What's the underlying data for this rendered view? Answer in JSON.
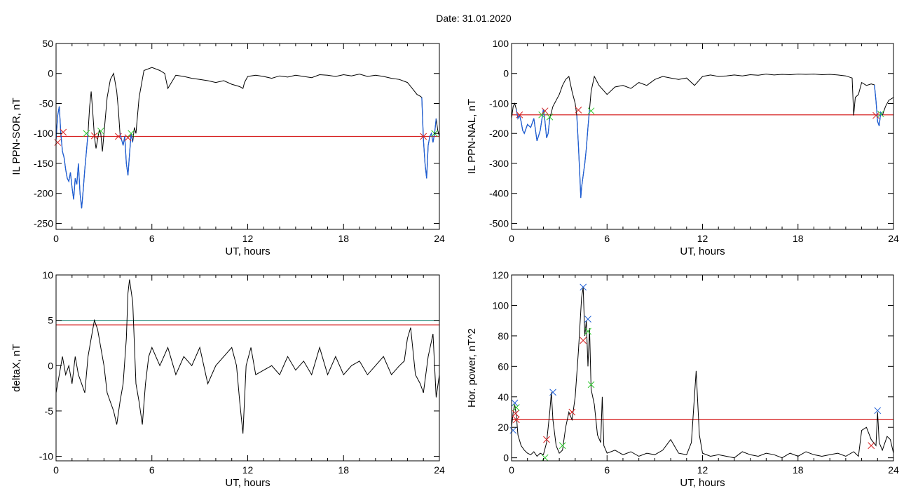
{
  "figure": {
    "title": "Date:  31.01.2020"
  },
  "colors": {
    "trace": "#000000",
    "highlight": "#1f5fd6",
    "threshold_red": "#d62020",
    "threshold_teal": "#2a8c7c",
    "marker_red": "#d62020",
    "marker_green": "#2fc82f",
    "marker_blue": "#1f5fd6"
  },
  "chart_data": [
    {
      "type": "line",
      "id": "ppn-sor",
      "ylabel": "IL PPN-SOR, nT",
      "xlabel": "UT, hours",
      "xlim": [
        0,
        24
      ],
      "ylim": [
        -260,
        50
      ],
      "xticks": [
        0,
        6,
        12,
        18,
        24
      ],
      "yticks": [
        50,
        0,
        -50,
        -100,
        -150,
        -200,
        -250
      ],
      "grid": false,
      "threshold_lines": [
        {
          "y": -105,
          "color": "red"
        }
      ],
      "series": [
        {
          "values_x": [
            0.0,
            0.1,
            0.2,
            0.3,
            0.4,
            0.5,
            0.6,
            0.7,
            0.8,
            0.9,
            1.0,
            1.1,
            1.2,
            1.3,
            1.4,
            1.5,
            1.6,
            1.7,
            1.8,
            1.9,
            2.0,
            2.1,
            2.2,
            2.3,
            2.4,
            2.5,
            2.6,
            2.7,
            2.8,
            2.9,
            3.0,
            3.2,
            3.4,
            3.6,
            3.8,
            3.9,
            4.0,
            4.1,
            4.2,
            4.3,
            4.4,
            4.5,
            4.6,
            4.7,
            4.8,
            4.9,
            5.0,
            5.2,
            5.5,
            6.0,
            6.5,
            6.8,
            7.0,
            7.5,
            8.0,
            8.5,
            9.0,
            9.5,
            10.0,
            10.5,
            11.0,
            11.5,
            11.7,
            11.8,
            12.0,
            12.5,
            13.0,
            13.5,
            14.0,
            14.5,
            15.0,
            15.5,
            16.0,
            16.5,
            17.0,
            17.5,
            18.0,
            18.5,
            19.0,
            19.5,
            20.0,
            20.5,
            21.0,
            21.5,
            22.0,
            22.3,
            22.6,
            22.8,
            22.9,
            23.0,
            23.1,
            23.2,
            23.3,
            23.4,
            23.5,
            23.6,
            23.7,
            23.8,
            23.9,
            24.0
          ],
          "values_y": [
            -110,
            -70,
            -55,
            -100,
            -130,
            -140,
            -160,
            -175,
            -180,
            -165,
            -190,
            -210,
            -175,
            -185,
            -150,
            -200,
            -225,
            -195,
            -160,
            -130,
            -100,
            -55,
            -30,
            -65,
            -105,
            -125,
            -110,
            -95,
            -100,
            -130,
            -100,
            -40,
            -10,
            0,
            -30,
            -60,
            -100,
            -110,
            -120,
            -105,
            -150,
            -170,
            -135,
            -100,
            -115,
            -90,
            -100,
            -40,
            5,
            10,
            5,
            0,
            -25,
            -3,
            -5,
            -8,
            -10,
            -12,
            -15,
            -12,
            -18,
            -22,
            -25,
            -15,
            -5,
            -3,
            -5,
            -8,
            -4,
            -6,
            -3,
            -5,
            -7,
            -2,
            -3,
            -5,
            -2,
            -4,
            -1,
            -5,
            -3,
            -5,
            -8,
            -10,
            -15,
            -25,
            -35,
            -38,
            -40,
            -110,
            -150,
            -175,
            -120,
            -105,
            -100,
            -115,
            -100,
            -75,
            -95,
            -105
          ],
          "highlight_ranges": [
            [
              0.0,
              2.0
            ],
            [
              4.0,
              4.8
            ],
            [
              22.9,
              23.8
            ]
          ]
        }
      ],
      "markers": [
        {
          "x": 0.1,
          "y": -115,
          "color": "red"
        },
        {
          "x": 0.45,
          "y": -98,
          "color": "red"
        },
        {
          "x": 1.9,
          "y": -100,
          "color": "green"
        },
        {
          "x": 2.4,
          "y": -104,
          "color": "red"
        },
        {
          "x": 2.8,
          "y": -96,
          "color": "green"
        },
        {
          "x": 3.9,
          "y": -105,
          "color": "red"
        },
        {
          "x": 4.5,
          "y": -107,
          "color": "red"
        },
        {
          "x": 4.7,
          "y": -100,
          "color": "green"
        },
        {
          "x": 23.0,
          "y": -105,
          "color": "red"
        },
        {
          "x": 23.7,
          "y": -100,
          "color": "green"
        }
      ]
    },
    {
      "type": "line",
      "id": "ppn-nal",
      "ylabel": "IL PPN-NAL, nT",
      "xlabel": "UT, hours",
      "xlim": [
        0,
        24
      ],
      "ylim": [
        -520,
        100
      ],
      "xticks": [
        0,
        6,
        12,
        18,
        24
      ],
      "yticks": [
        100,
        0,
        -100,
        -200,
        -300,
        -400,
        -500
      ],
      "grid": false,
      "threshold_lines": [
        {
          "y": -138,
          "color": "red"
        }
      ],
      "series": [
        {
          "values_x": [
            0.0,
            0.1,
            0.2,
            0.3,
            0.4,
            0.5,
            0.6,
            0.7,
            0.8,
            1.0,
            1.2,
            1.4,
            1.6,
            1.8,
            2.0,
            2.1,
            2.2,
            2.3,
            2.4,
            2.6,
            3.0,
            3.2,
            3.4,
            3.6,
            3.8,
            4.0,
            4.1,
            4.2,
            4.3,
            4.35,
            4.4,
            4.5,
            4.6,
            4.7,
            4.8,
            4.9,
            5.0,
            5.2,
            5.5,
            6.0,
            6.5,
            7.0,
            7.5,
            8.0,
            8.5,
            9.0,
            9.5,
            10.0,
            10.5,
            11.0,
            11.5,
            12.0,
            12.5,
            13.0,
            13.5,
            14.0,
            14.5,
            15.0,
            15.5,
            16.0,
            16.5,
            17.0,
            17.5,
            18.0,
            18.5,
            19.0,
            19.5,
            20.0,
            20.5,
            21.0,
            21.4,
            21.5,
            21.6,
            21.8,
            22.0,
            22.3,
            22.6,
            22.8,
            22.9,
            23.0,
            23.1,
            23.2,
            23.3,
            23.5,
            23.7,
            24.0
          ],
          "values_y": [
            -150,
            -110,
            -100,
            -120,
            -150,
            -140,
            -160,
            -190,
            -200,
            -170,
            -180,
            -150,
            -225,
            -190,
            -120,
            -160,
            -215,
            -200,
            -150,
            -110,
            -70,
            -40,
            -20,
            -10,
            -60,
            -100,
            -140,
            -240,
            -350,
            -415,
            -380,
            -340,
            -300,
            -250,
            -180,
            -120,
            -60,
            -10,
            -40,
            -70,
            -45,
            -40,
            -50,
            -30,
            -40,
            -20,
            -10,
            -15,
            -20,
            -15,
            -40,
            -10,
            -5,
            -10,
            -8,
            -5,
            -8,
            -4,
            -6,
            -2,
            -5,
            -3,
            -4,
            -2,
            -3,
            -2,
            -4,
            -3,
            -5,
            -8,
            -15,
            -140,
            -80,
            -70,
            -30,
            -40,
            -35,
            -38,
            -90,
            -160,
            -175,
            -130,
            -140,
            -110,
            -90,
            -80
          ],
          "highlight_ranges": [
            [
              0.3,
              2.4
            ],
            [
              4.1,
              4.9
            ],
            [
              22.8,
              23.3
            ]
          ]
        }
      ],
      "markers": [
        {
          "x": 0.5,
          "y": -138,
          "color": "red"
        },
        {
          "x": 1.9,
          "y": -138,
          "color": "green"
        },
        {
          "x": 2.1,
          "y": -125,
          "color": "red"
        },
        {
          "x": 2.4,
          "y": -145,
          "color": "green"
        },
        {
          "x": 4.2,
          "y": -122,
          "color": "red"
        },
        {
          "x": 5.0,
          "y": -125,
          "color": "green"
        },
        {
          "x": 22.9,
          "y": -140,
          "color": "red"
        },
        {
          "x": 23.2,
          "y": -135,
          "color": "green"
        }
      ]
    },
    {
      "type": "line",
      "id": "deltax",
      "ylabel": "deltaX, nT",
      "xlabel": "UT, hours",
      "xlim": [
        0,
        24
      ],
      "ylim": [
        -10.5,
        10
      ],
      "xticks": [
        0,
        6,
        12,
        18,
        24
      ],
      "yticks": [
        10,
        5,
        0,
        -5,
        -10
      ],
      "grid": false,
      "threshold_lines": [
        {
          "y": 5.0,
          "color": "teal"
        },
        {
          "y": 4.5,
          "color": "red"
        }
      ],
      "series": [
        {
          "values_x": [
            0.0,
            0.2,
            0.4,
            0.6,
            0.8,
            1.0,
            1.2,
            1.4,
            1.6,
            1.8,
            2.0,
            2.2,
            2.4,
            2.6,
            2.8,
            3.0,
            3.2,
            3.4,
            3.6,
            3.8,
            4.0,
            4.2,
            4.4,
            4.5,
            4.6,
            4.8,
            5.0,
            5.2,
            5.4,
            5.6,
            5.8,
            6.0,
            6.5,
            7.0,
            7.5,
            8.0,
            8.5,
            9.0,
            9.5,
            10.0,
            10.5,
            11.0,
            11.3,
            11.5,
            11.7,
            11.9,
            12.2,
            12.5,
            13.0,
            13.5,
            14.0,
            14.5,
            15.0,
            15.5,
            16.0,
            16.5,
            17.0,
            17.5,
            18.0,
            18.5,
            19.0,
            19.5,
            20.0,
            20.5,
            21.0,
            21.5,
            21.8,
            22.0,
            22.2,
            22.5,
            22.8,
            23.0,
            23.3,
            23.6,
            23.8,
            24.0
          ],
          "values_y": [
            -3,
            -1,
            1,
            -1,
            0,
            -2,
            1,
            -1,
            -2,
            -3,
            1,
            3,
            5,
            4,
            2,
            0,
            -3,
            -4,
            -5,
            -6.5,
            -4,
            -2,
            3,
            8,
            9.5,
            7,
            -2,
            -4,
            -6.5,
            -2,
            1,
            2,
            0,
            2,
            -1,
            1,
            0,
            2,
            -2,
            0,
            1,
            2,
            0,
            -4,
            -7.5,
            0,
            2,
            -1,
            -0.5,
            0,
            -1,
            1,
            -0.5,
            0.5,
            -1,
            2,
            -1,
            1,
            -1,
            0,
            0.5,
            -1,
            0,
            1,
            -1,
            0,
            0.5,
            3,
            4.2,
            -1,
            -2,
            -3,
            1,
            3.5,
            -3.5,
            -1
          ]
        }
      ],
      "markers": []
    },
    {
      "type": "line",
      "id": "hor-power",
      "ylabel": "Hor. power, nT^2",
      "xlabel": "UT, hours",
      "xlim": [
        0,
        24
      ],
      "ylim": [
        -2,
        120
      ],
      "xticks": [
        0,
        6,
        12,
        18,
        24
      ],
      "yticks": [
        120,
        100,
        80,
        60,
        40,
        20,
        0
      ],
      "grid": false,
      "threshold_lines": [
        {
          "y": 25,
          "color": "red"
        }
      ],
      "series": [
        {
          "values_x": [
            0.0,
            0.1,
            0.2,
            0.3,
            0.4,
            0.6,
            0.8,
            1.0,
            1.2,
            1.4,
            1.6,
            1.8,
            2.0,
            2.2,
            2.4,
            2.5,
            2.6,
            2.8,
            3.0,
            3.2,
            3.4,
            3.6,
            3.8,
            4.0,
            4.2,
            4.4,
            4.5,
            4.6,
            4.7,
            4.8,
            4.9,
            5.0,
            5.2,
            5.4,
            5.6,
            5.7,
            5.8,
            6.0,
            6.5,
            7.0,
            7.5,
            8.0,
            8.5,
            9.0,
            9.5,
            10.0,
            10.5,
            11.0,
            11.3,
            11.6,
            11.8,
            12.0,
            12.5,
            13.0,
            13.5,
            14.0,
            14.5,
            15.0,
            15.5,
            16.0,
            16.5,
            17.0,
            17.5,
            18.0,
            18.5,
            19.0,
            19.5,
            20.0,
            20.5,
            21.0,
            21.5,
            21.8,
            22.0,
            22.3,
            22.6,
            22.9,
            23.0,
            23.1,
            23.3,
            23.6,
            23.8,
            24.0
          ],
          "values_y": [
            20,
            30,
            35,
            28,
            15,
            8,
            5,
            3,
            2,
            4,
            1,
            3,
            2,
            10,
            30,
            43,
            25,
            8,
            3,
            5,
            20,
            30,
            25,
            40,
            70,
            105,
            112,
            80,
            90,
            60,
            85,
            45,
            35,
            15,
            10,
            40,
            8,
            3,
            5,
            2,
            4,
            1,
            3,
            2,
            5,
            12,
            3,
            2,
            10,
            57,
            15,
            3,
            1,
            2,
            1,
            0,
            4,
            2,
            1,
            3,
            2,
            0,
            3,
            1,
            4,
            2,
            1,
            2,
            3,
            1,
            4,
            1,
            18,
            20,
            12,
            8,
            30,
            10,
            5,
            14,
            12,
            3
          ]
        }
      ],
      "markers": [
        {
          "x": 0.1,
          "y": 18,
          "color": "blue"
        },
        {
          "x": 0.2,
          "y": 36,
          "color": "blue"
        },
        {
          "x": 0.3,
          "y": 33,
          "color": "green"
        },
        {
          "x": 0.25,
          "y": 29,
          "color": "red"
        },
        {
          "x": 0.3,
          "y": 25,
          "color": "red"
        },
        {
          "x": 2.2,
          "y": 12,
          "color": "red"
        },
        {
          "x": 2.1,
          "y": 0,
          "color": "green"
        },
        {
          "x": 2.6,
          "y": 43,
          "color": "blue"
        },
        {
          "x": 3.2,
          "y": 8,
          "color": "green"
        },
        {
          "x": 3.8,
          "y": 30,
          "color": "red"
        },
        {
          "x": 4.5,
          "y": 112,
          "color": "blue"
        },
        {
          "x": 4.5,
          "y": 77,
          "color": "red"
        },
        {
          "x": 4.8,
          "y": 91,
          "color": "blue"
        },
        {
          "x": 4.8,
          "y": 83,
          "color": "green"
        },
        {
          "x": 5.0,
          "y": 48,
          "color": "green"
        },
        {
          "x": 22.6,
          "y": 8,
          "color": "red"
        },
        {
          "x": 23.0,
          "y": 31,
          "color": "blue"
        }
      ]
    }
  ]
}
